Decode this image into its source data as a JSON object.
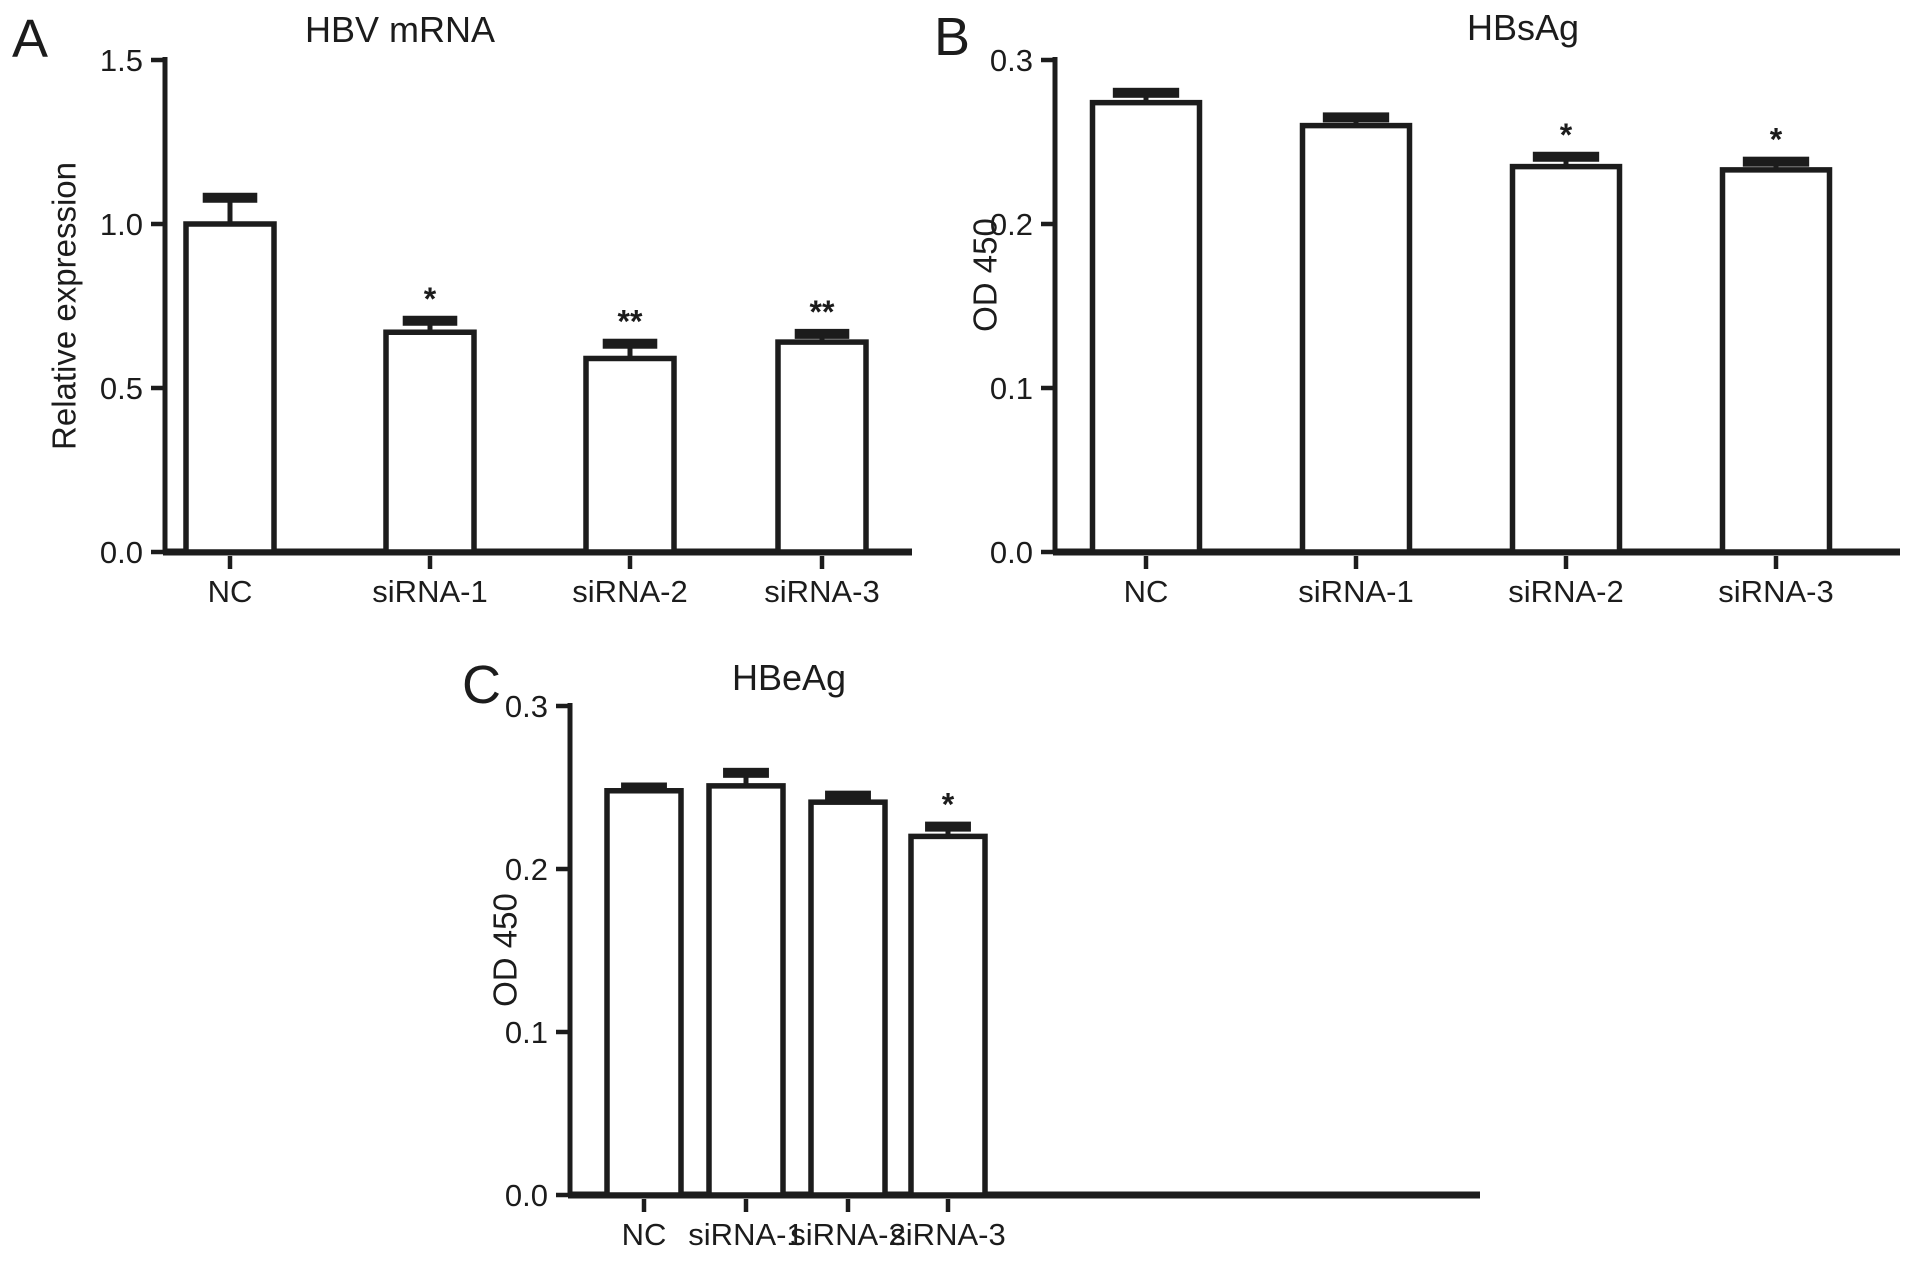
{
  "figure": {
    "background": "#ffffff",
    "ink": "#1c1c1c",
    "bar_fill": "#ffffff",
    "description": "Three-panel bar figure (A, B, C) with error bars and significance asterisks"
  },
  "chart_data": [
    {
      "id": "panel-a",
      "panel_letter": "A",
      "type": "bar",
      "title": "HBV mRNA",
      "ylabel": "Relative expression",
      "xlabel": "",
      "categories": [
        "NC",
        "siRNA-1",
        "siRNA-2",
        "siRNA-3"
      ],
      "values": [
        1.0,
        0.67,
        0.59,
        0.64
      ],
      "errors": [
        0.08,
        0.035,
        0.045,
        0.025
      ],
      "significance": [
        "",
        "*",
        "**",
        "**"
      ],
      "ylim": [
        0,
        1.5
      ],
      "yticks": [
        0,
        0.5,
        1.0,
        1.5
      ],
      "ytick_labels": [
        "0.0",
        "0.5",
        "1.0",
        "1.5"
      ],
      "grid": false,
      "legend": "none",
      "bar_fill": "#ffffff",
      "bar_stroke": "#1c1c1c"
    },
    {
      "id": "panel-b",
      "panel_letter": "B",
      "type": "bar",
      "title": "HBsAg",
      "ylabel": "OD 450",
      "xlabel": "",
      "categories": [
        "NC",
        "siRNA-1",
        "siRNA-2",
        "siRNA-3"
      ],
      "values": [
        0.274,
        0.26,
        0.235,
        0.233
      ],
      "errors": [
        0.006,
        0.005,
        0.006,
        0.005
      ],
      "significance": [
        "",
        "",
        "*",
        "*"
      ],
      "ylim": [
        0,
        0.3
      ],
      "yticks": [
        0,
        0.1,
        0.2,
        0.3
      ],
      "ytick_labels": [
        "0.0",
        "0.1",
        "0.2",
        "0.3"
      ],
      "grid": false,
      "legend": "none",
      "bar_fill": "#ffffff",
      "bar_stroke": "#1c1c1c"
    },
    {
      "id": "panel-c",
      "panel_letter": "C",
      "type": "bar",
      "title": "HBeAg",
      "ylabel": "OD 450",
      "xlabel": "",
      "categories": [
        "NC",
        "siRNA-1",
        "siRNA-2",
        "siRNA-3"
      ],
      "values": [
        0.248,
        0.251,
        0.241,
        0.22
      ],
      "errors": [
        0.002,
        0.008,
        0.004,
        0.006
      ],
      "significance": [
        "",
        "",
        "",
        "*"
      ],
      "ylim": [
        0,
        0.3
      ],
      "yticks": [
        0,
        0.1,
        0.2,
        0.3
      ],
      "ytick_labels": [
        "0.0",
        "0.1",
        "0.2",
        "0.3"
      ],
      "grid": false,
      "legend": "none",
      "bar_fill": "#ffffff",
      "bar_stroke": "#1c1c1c"
    }
  ]
}
